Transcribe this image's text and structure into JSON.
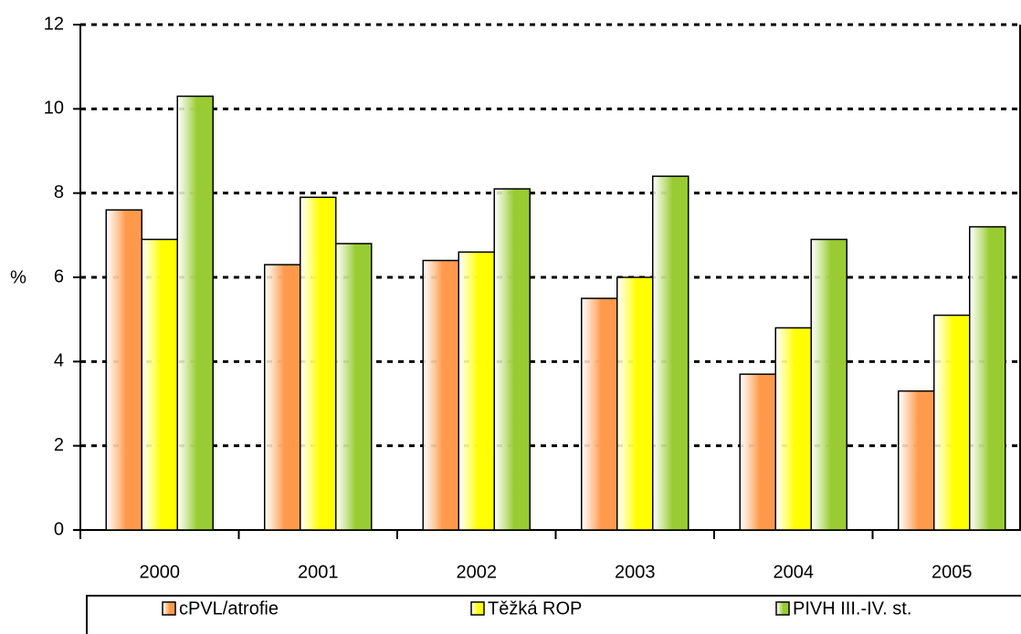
{
  "chart_data": {
    "type": "bar",
    "ylabel": "%",
    "categories": [
      "2000",
      "2001",
      "2002",
      "2003",
      "2004",
      "2005"
    ],
    "series": [
      {
        "name": "cPVL/atrofie",
        "color": "#ff9a4d",
        "values": [
          7.6,
          6.3,
          6.4,
          5.5,
          3.7,
          3.3
        ]
      },
      {
        "name": "Těžká ROP",
        "color": "#ffff00",
        "values": [
          6.9,
          7.9,
          6.6,
          6.0,
          4.8,
          5.1
        ]
      },
      {
        "name": "PIVH III.-IV. st.",
        "color": "#99cc33",
        "values": [
          10.3,
          6.8,
          8.1,
          8.4,
          6.9,
          7.2
        ]
      }
    ],
    "ylim": [
      0,
      12
    ],
    "yticks": [
      0,
      2,
      4,
      6,
      8,
      10,
      12
    ],
    "grid": true,
    "legend": "bottom"
  }
}
